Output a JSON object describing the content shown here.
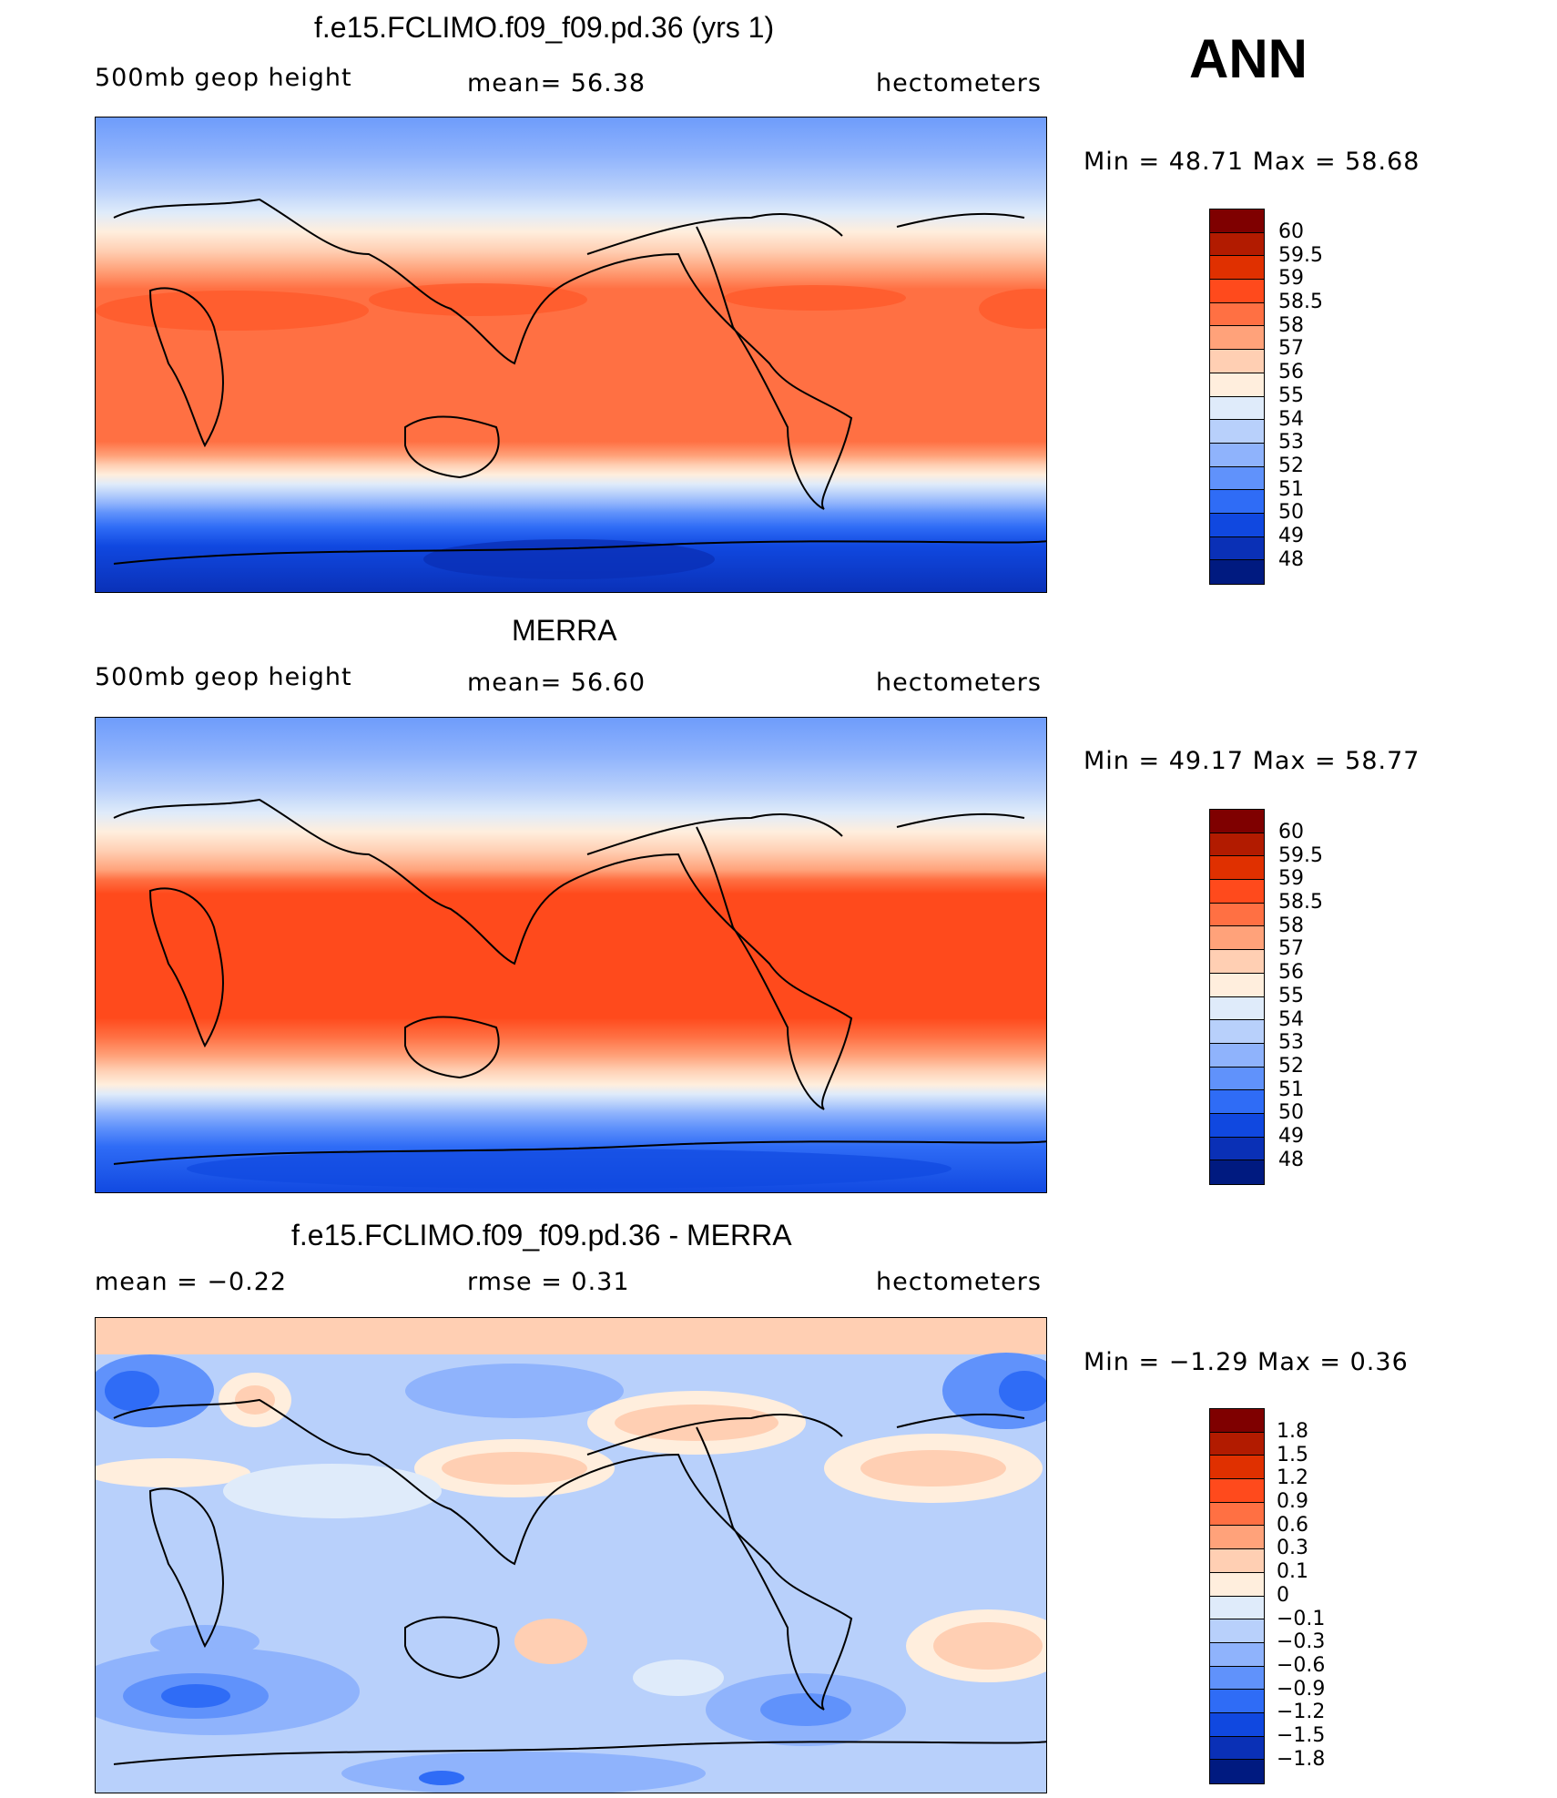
{
  "season": "ANN",
  "panels": [
    {
      "id": "model",
      "title": "f.e15.FCLIMO.f09_f09.pd.36 (yrs 1)",
      "left_label": "500mb geop height",
      "center_label": "mean=  56.38",
      "right_label": "hectometers",
      "minmax": "Min =   48.71 Max =   58.68",
      "colorbar_labels": [
        "60",
        "59.5",
        "59",
        "58.5",
        "58",
        "57",
        "56",
        "55",
        "54",
        "53",
        "52",
        "51",
        "50",
        "49",
        "48"
      ]
    },
    {
      "id": "obs",
      "title": "MERRA",
      "left_label": "500mb geop height",
      "center_label": "mean=  56.60",
      "right_label": "hectometers",
      "minmax": "Min =   49.17 Max =   58.77",
      "colorbar_labels": [
        "60",
        "59.5",
        "59",
        "58.5",
        "58",
        "57",
        "56",
        "55",
        "54",
        "53",
        "52",
        "51",
        "50",
        "49",
        "48"
      ]
    },
    {
      "id": "diff",
      "title": "f.e15.FCLIMO.f09_f09.pd.36 - MERRA",
      "left_label": "mean =   −0.22",
      "center_label": "rmse =    0.31",
      "right_label": "hectometers",
      "minmax": "Min =  −1.29 Max =    0.36",
      "colorbar_labels": [
        "1.8",
        "1.5",
        "1.2",
        "0.9",
        "0.6",
        "0.3",
        "0.1",
        "0",
        "−0.1",
        "−0.3",
        "−0.6",
        "−0.9",
        "−1.2",
        "−1.5",
        "−1.8"
      ]
    }
  ],
  "colors": {
    "abs_scale": [
      "#7f0000",
      "#b21b00",
      "#e03000",
      "#ff4a1c",
      "#ff7043",
      "#ffa27a",
      "#ffcfb3",
      "#ffeedd",
      "#dfebfa",
      "#b8d0fb",
      "#8fb3fc",
      "#6092fb",
      "#2f6cf6",
      "#1048e0",
      "#0a30b6",
      "#001a80"
    ],
    "diff_scale": [
      "#7f0000",
      "#b21b00",
      "#e03000",
      "#ff4a1c",
      "#ff7043",
      "#ffa27a",
      "#ffcfb3",
      "#ffeedd",
      "#dfebfa",
      "#b8d0fb",
      "#8fb3fc",
      "#6092fb",
      "#2f6cf6",
      "#1048e0",
      "#0a30b6",
      "#001a80"
    ]
  }
}
